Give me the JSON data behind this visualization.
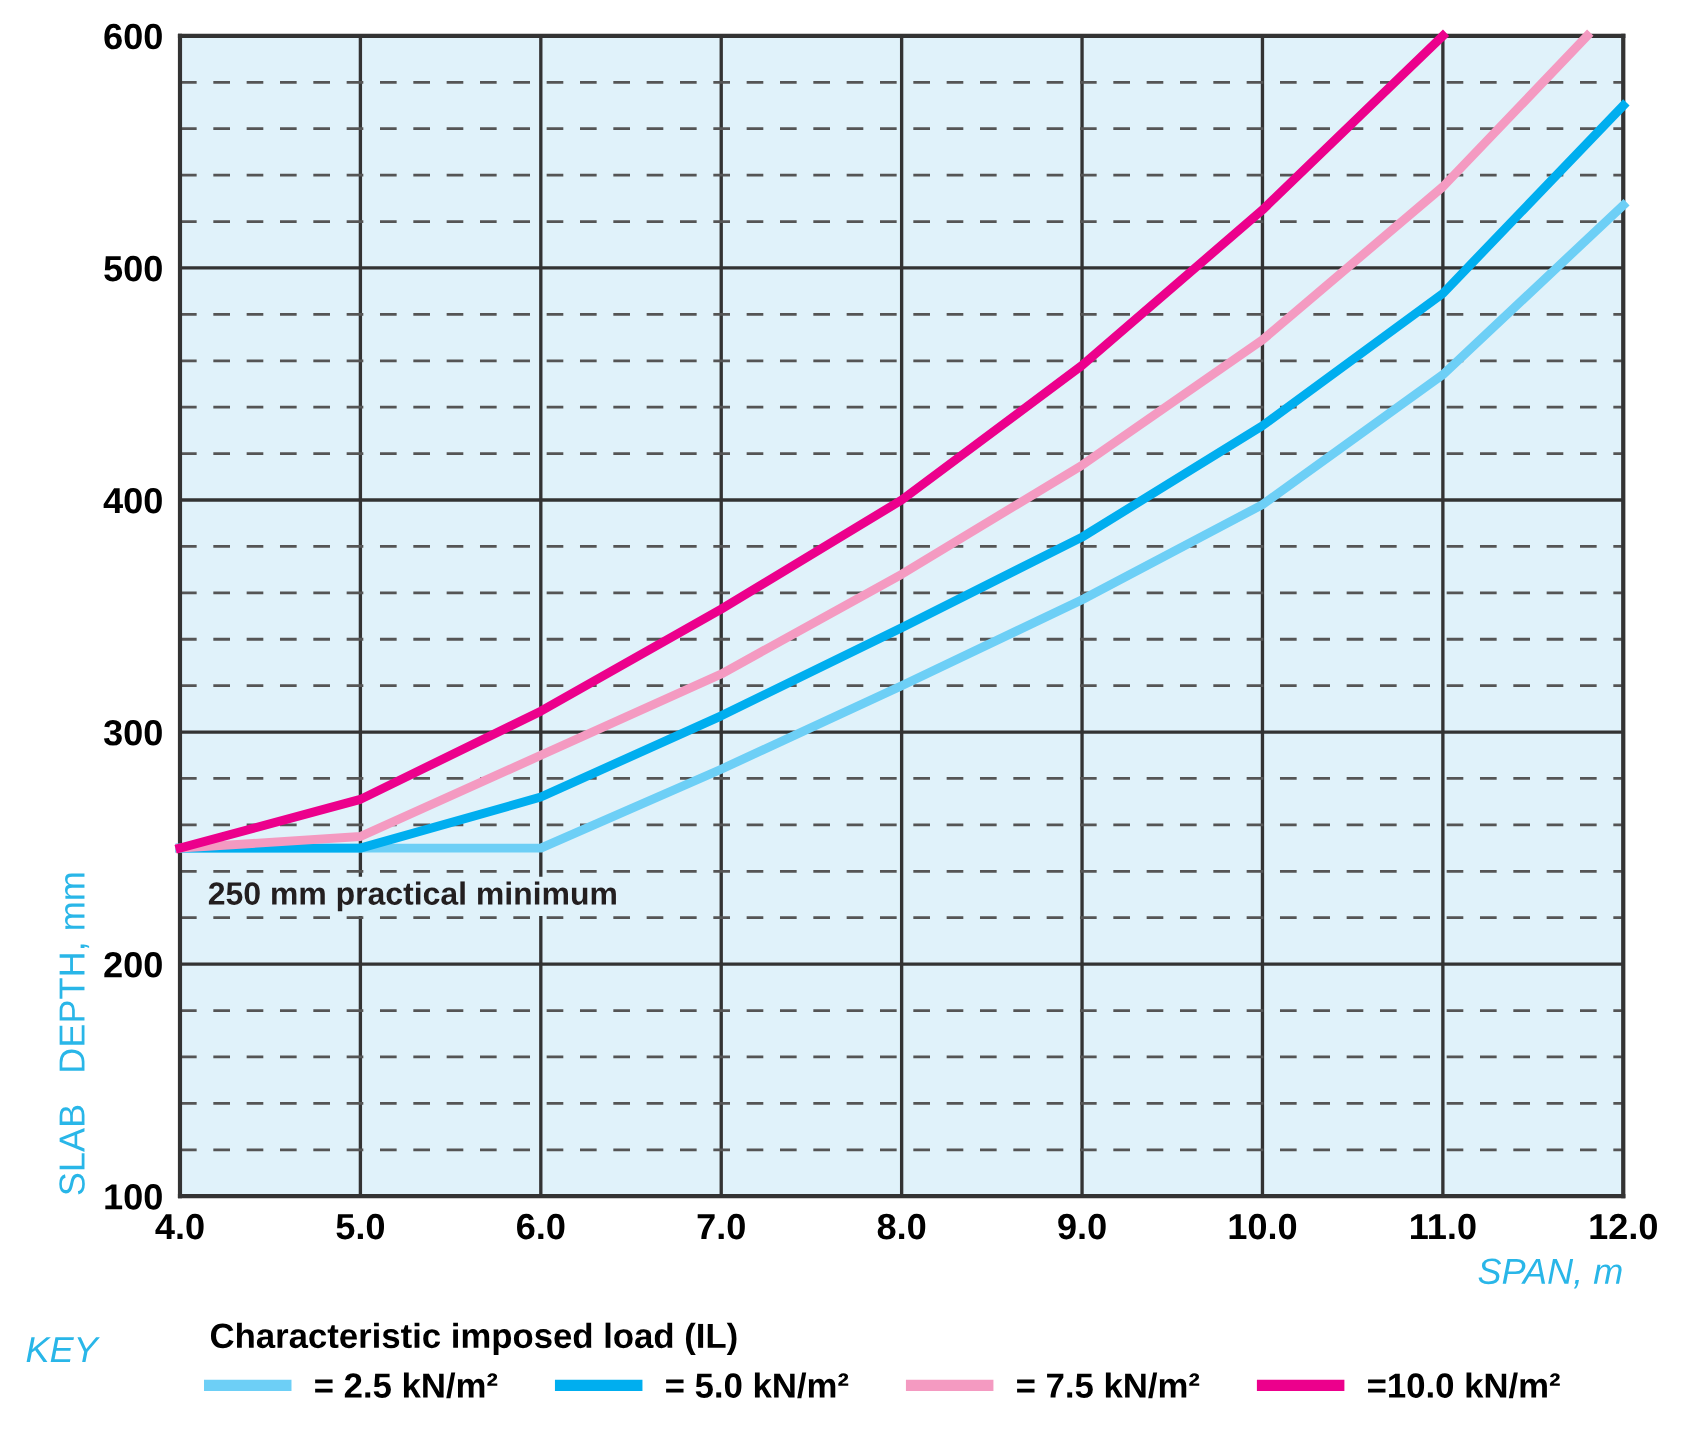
{
  "chart_data": {
    "type": "line",
    "xlabel": "SPAN, m",
    "ylabel": "SLAB   DEPTH, mm",
    "legend_title": "Characteristic imposed load (IL)",
    "legend": "bottom",
    "grid": true,
    "line_style": "solid",
    "marker": "none",
    "x": [
      4,
      5,
      6,
      7,
      8,
      9,
      10,
      11,
      12
    ],
    "xlim": [
      4,
      12
    ],
    "xticks": [
      {
        "value": 4,
        "label": "4.0"
      },
      {
        "value": 5,
        "label": "5.0"
      },
      {
        "value": 6,
        "label": "6.0"
      },
      {
        "value": 7,
        "label": "7.0"
      },
      {
        "value": 8,
        "label": "8.0"
      },
      {
        "value": 9,
        "label": "9.0"
      },
      {
        "value": 10,
        "label": "10.0"
      },
      {
        "value": 11,
        "label": "11.0"
      },
      {
        "value": 12,
        "label": "12.0"
      }
    ],
    "ylim": [
      100,
      600
    ],
    "yticks": [
      100,
      {
        "value": 120,
        "label": null
      },
      {
        "value": 140,
        "label": null
      },
      {
        "value": 160,
        "label": null
      },
      {
        "value": 180,
        "label": null
      },
      200,
      {
        "value": 220,
        "label": null
      },
      {
        "value": 240,
        "label": null
      },
      {
        "value": 260,
        "label": null
      },
      {
        "value": 280,
        "label": null
      },
      300,
      {
        "value": 320,
        "label": null
      },
      {
        "value": 340,
        "label": null
      },
      {
        "value": 360,
        "label": null
      },
      {
        "value": 380,
        "label": null
      },
      400,
      {
        "value": 420,
        "label": null
      },
      {
        "value": 440,
        "label": null
      },
      {
        "value": 460,
        "label": null
      },
      {
        "value": 480,
        "label": null
      },
      500,
      {
        "value": 520,
        "label": null
      },
      {
        "value": 540,
        "label": null
      },
      {
        "value": 560,
        "label": null
      },
      {
        "value": 580,
        "label": null
      },
      600
    ],
    "series": [
      {
        "name": "= 2.5 kN/m²",
        "color": "#6dcff6",
        "values": [
          250,
          250,
          250,
          284,
          320,
          357,
          398,
          454,
          527
        ]
      },
      {
        "name": "= 5.0 kN/m²",
        "color": "#00aeef",
        "values": [
          250,
          250,
          272,
          307,
          345,
          384,
          432,
          489,
          570
        ]
      },
      {
        "name": "= 7.5 kN/m²",
        "color": "#f49ac1",
        "x": [
          4,
          5,
          6,
          7,
          8,
          9,
          10,
          11,
          11.8
        ],
        "values": [
          250,
          255,
          290,
          325,
          368,
          415,
          469,
          535,
          600
        ]
      },
      {
        "name": "=10.0 kN/m²",
        "color": "#ec008c",
        "x": [
          4,
          5,
          6,
          7,
          8,
          9,
          10,
          11
        ],
        "values": [
          250,
          271,
          309,
          353,
          400,
          458,
          525,
          600
        ]
      }
    ],
    "annotations": [
      {
        "text": "250 mm practical minimum",
        "x": 4,
        "y": 250
      },
      "KEY"
    ]
  }
}
